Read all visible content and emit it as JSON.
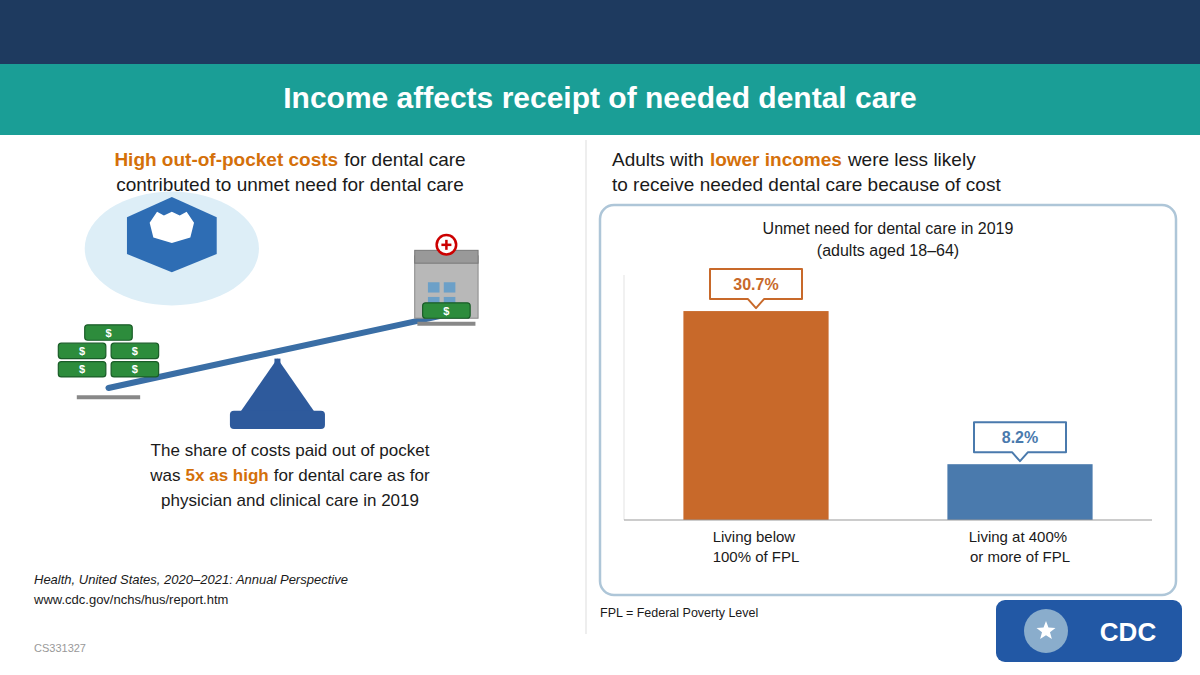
{
  "chart_data": {
    "type": "bar",
    "title": "Unmet need for dental care in 2019",
    "subtitle": "(adults aged 18–64)",
    "categories": [
      "Living below 100% of FPL",
      "Living at 400% or more of FPL"
    ],
    "values": [
      30.7,
      8.2
    ],
    "value_labels": [
      "30.7%",
      "8.2%"
    ],
    "colors": [
      "#c8692a",
      "#4a7aad"
    ],
    "ylim": [
      0,
      36
    ],
    "data_labels": true,
    "tick_labels": false,
    "grid": false,
    "annotations": [
      {
        "text": "Income affects receipt of needed dental care"
      },
      {
        "text": "High out-of-pocket costs",
        "color": "#d4700a"
      },
      {
        "text": "for dental care"
      },
      {
        "text": "contributed to unmet need for dental care"
      },
      {
        "text": "The share of costs paid out of pocket"
      },
      {
        "text": "was"
      },
      {
        "text": "5x as high",
        "color": "#d4700a"
      },
      {
        "text": "for dental care as for"
      },
      {
        "text": "physician and clinical care in 2019"
      },
      {
        "text": "Adults with"
      },
      {
        "text": "lower incomes",
        "color": "#d4700a"
      },
      {
        "text": "were less likely"
      },
      {
        "text": "to receive needed dental care because of cost"
      },
      {
        "text": "Health, United States, 2020–2021: Annual Perspective"
      },
      {
        "text": "www.cdc.gov/nchs/hus/report.htm"
      },
      {
        "text": "CS331327"
      },
      {
        "text": "FPL = Federal Poverty Level"
      },
      {
        "text": "CDC"
      },
      {
        "text": "$"
      }
    ]
  }
}
